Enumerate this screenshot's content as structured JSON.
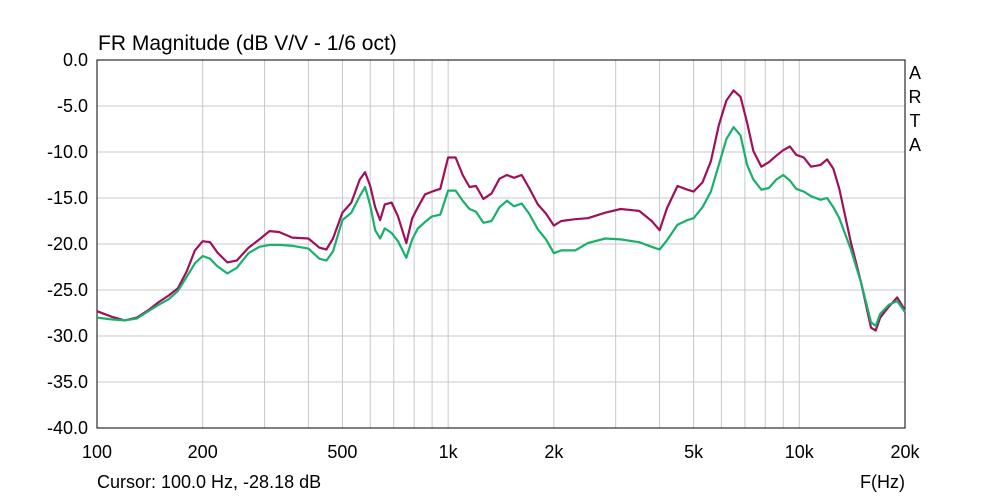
{
  "chart_data": {
    "type": "line",
    "title": "FR Magnitude (dB V/V - 1/6 oct)",
    "xlabel": "F(Hz)",
    "ylabel": "",
    "x_scale": "log",
    "xlim": [
      100,
      20000
    ],
    "ylim": [
      -40,
      0
    ],
    "grid": true,
    "x_ticks": [
      {
        "value": 100,
        "label": "100"
      },
      {
        "value": 200,
        "label": "200"
      },
      {
        "value": 500,
        "label": "500"
      },
      {
        "value": 1000,
        "label": "1k"
      },
      {
        "value": 2000,
        "label": "2k"
      },
      {
        "value": 5000,
        "label": "5k"
      },
      {
        "value": 10000,
        "label": "10k"
      },
      {
        "value": 20000,
        "label": "20k"
      }
    ],
    "y_ticks": [
      {
        "value": 0,
        "label": "0.0"
      },
      {
        "value": -5,
        "label": "-5.0"
      },
      {
        "value": -10,
        "label": "-10.0"
      },
      {
        "value": -15,
        "label": "-15.0"
      },
      {
        "value": -20,
        "label": "-20.0"
      },
      {
        "value": -25,
        "label": "-25.0"
      },
      {
        "value": -30,
        "label": "-30.0"
      },
      {
        "value": -35,
        "label": "-35.0"
      },
      {
        "value": -40,
        "label": "-40.0"
      }
    ],
    "series": [
      {
        "color": "#a0105a",
        "points": [
          [
            100,
            -27.3
          ],
          [
            110,
            -27.9
          ],
          [
            120,
            -28.3
          ],
          [
            130,
            -28.0
          ],
          [
            140,
            -27.2
          ],
          [
            150,
            -26.3
          ],
          [
            160,
            -25.6
          ],
          [
            170,
            -24.8
          ],
          [
            180,
            -23.0
          ],
          [
            190,
            -20.7
          ],
          [
            200,
            -19.7
          ],
          [
            210,
            -19.8
          ],
          [
            220,
            -20.9
          ],
          [
            235,
            -22.0
          ],
          [
            250,
            -21.8
          ],
          [
            270,
            -20.4
          ],
          [
            290,
            -19.5
          ],
          [
            310,
            -18.6
          ],
          [
            330,
            -18.7
          ],
          [
            360,
            -19.3
          ],
          [
            400,
            -19.4
          ],
          [
            430,
            -20.4
          ],
          [
            450,
            -20.6
          ],
          [
            470,
            -19.4
          ],
          [
            500,
            -16.6
          ],
          [
            530,
            -15.5
          ],
          [
            560,
            -13.0
          ],
          [
            580,
            -12.2
          ],
          [
            600,
            -13.7
          ],
          [
            620,
            -16.0
          ],
          [
            640,
            -17.4
          ],
          [
            660,
            -15.7
          ],
          [
            690,
            -15.5
          ],
          [
            720,
            -17.0
          ],
          [
            760,
            -19.9
          ],
          [
            790,
            -17.2
          ],
          [
            820,
            -16.0
          ],
          [
            860,
            -14.6
          ],
          [
            900,
            -14.3
          ],
          [
            950,
            -14.0
          ],
          [
            1000,
            -10.6
          ],
          [
            1050,
            -10.6
          ],
          [
            1100,
            -12.5
          ],
          [
            1150,
            -13.8
          ],
          [
            1200,
            -13.7
          ],
          [
            1260,
            -15.1
          ],
          [
            1330,
            -14.5
          ],
          [
            1400,
            -12.9
          ],
          [
            1470,
            -12.5
          ],
          [
            1540,
            -12.8
          ],
          [
            1620,
            -12.5
          ],
          [
            1700,
            -13.9
          ],
          [
            1800,
            -15.7
          ],
          [
            1900,
            -16.7
          ],
          [
            2000,
            -18.0
          ],
          [
            2100,
            -17.5
          ],
          [
            2300,
            -17.3
          ],
          [
            2500,
            -17.2
          ],
          [
            2800,
            -16.6
          ],
          [
            3100,
            -16.2
          ],
          [
            3500,
            -16.4
          ],
          [
            3800,
            -17.5
          ],
          [
            4000,
            -18.5
          ],
          [
            4200,
            -16.1
          ],
          [
            4500,
            -13.7
          ],
          [
            4800,
            -14.1
          ],
          [
            5000,
            -14.3
          ],
          [
            5300,
            -13.3
          ],
          [
            5600,
            -11.0
          ],
          [
            5900,
            -7.1
          ],
          [
            6200,
            -4.4
          ],
          [
            6500,
            -3.3
          ],
          [
            6800,
            -4.0
          ],
          [
            7100,
            -6.8
          ],
          [
            7400,
            -9.9
          ],
          [
            7800,
            -11.6
          ],
          [
            8200,
            -11.1
          ],
          [
            8600,
            -10.4
          ],
          [
            9000,
            -9.8
          ],
          [
            9400,
            -9.4
          ],
          [
            9800,
            -10.3
          ],
          [
            10300,
            -10.6
          ],
          [
            10800,
            -11.6
          ],
          [
            11500,
            -11.4
          ],
          [
            12000,
            -10.8
          ],
          [
            12500,
            -11.8
          ],
          [
            13000,
            -14.0
          ],
          [
            14000,
            -19.7
          ],
          [
            15000,
            -24.2
          ],
          [
            16000,
            -29.1
          ],
          [
            16500,
            -29.4
          ],
          [
            17000,
            -28.0
          ],
          [
            18000,
            -26.8
          ],
          [
            19000,
            -25.8
          ],
          [
            20000,
            -27.2
          ]
        ]
      },
      {
        "color": "#18b06a",
        "points": [
          [
            100,
            -28.0
          ],
          [
            110,
            -28.2
          ],
          [
            120,
            -28.3
          ],
          [
            130,
            -28.1
          ],
          [
            140,
            -27.3
          ],
          [
            150,
            -26.6
          ],
          [
            160,
            -26.0
          ],
          [
            170,
            -25.1
          ],
          [
            180,
            -23.6
          ],
          [
            190,
            -22.1
          ],
          [
            200,
            -21.3
          ],
          [
            210,
            -21.6
          ],
          [
            220,
            -22.4
          ],
          [
            235,
            -23.2
          ],
          [
            250,
            -22.6
          ],
          [
            270,
            -21.0
          ],
          [
            290,
            -20.3
          ],
          [
            310,
            -20.1
          ],
          [
            330,
            -20.1
          ],
          [
            360,
            -20.2
          ],
          [
            400,
            -20.5
          ],
          [
            430,
            -21.6
          ],
          [
            450,
            -21.8
          ],
          [
            470,
            -20.8
          ],
          [
            500,
            -17.4
          ],
          [
            530,
            -16.6
          ],
          [
            560,
            -14.8
          ],
          [
            580,
            -13.8
          ],
          [
            600,
            -15.8
          ],
          [
            620,
            -18.5
          ],
          [
            640,
            -19.4
          ],
          [
            660,
            -18.3
          ],
          [
            690,
            -18.8
          ],
          [
            720,
            -19.7
          ],
          [
            760,
            -21.5
          ],
          [
            790,
            -19.5
          ],
          [
            820,
            -18.3
          ],
          [
            860,
            -17.6
          ],
          [
            900,
            -17.0
          ],
          [
            950,
            -16.8
          ],
          [
            1000,
            -14.2
          ],
          [
            1050,
            -14.2
          ],
          [
            1100,
            -15.3
          ],
          [
            1150,
            -16.2
          ],
          [
            1200,
            -16.5
          ],
          [
            1260,
            -17.7
          ],
          [
            1330,
            -17.5
          ],
          [
            1400,
            -16.0
          ],
          [
            1470,
            -15.3
          ],
          [
            1540,
            -15.9
          ],
          [
            1620,
            -15.6
          ],
          [
            1700,
            -16.7
          ],
          [
            1800,
            -18.4
          ],
          [
            1900,
            -19.5
          ],
          [
            2000,
            -21.0
          ],
          [
            2100,
            -20.7
          ],
          [
            2300,
            -20.7
          ],
          [
            2500,
            -19.9
          ],
          [
            2800,
            -19.4
          ],
          [
            3100,
            -19.5
          ],
          [
            3500,
            -19.8
          ],
          [
            3800,
            -20.3
          ],
          [
            4000,
            -20.6
          ],
          [
            4200,
            -19.6
          ],
          [
            4500,
            -17.9
          ],
          [
            4800,
            -17.4
          ],
          [
            5000,
            -17.2
          ],
          [
            5300,
            -16.0
          ],
          [
            5600,
            -14.3
          ],
          [
            5900,
            -11.4
          ],
          [
            6200,
            -8.6
          ],
          [
            6500,
            -7.3
          ],
          [
            6800,
            -8.2
          ],
          [
            7100,
            -11.4
          ],
          [
            7400,
            -13.0
          ],
          [
            7800,
            -14.1
          ],
          [
            8200,
            -13.9
          ],
          [
            8600,
            -13.0
          ],
          [
            9000,
            -12.5
          ],
          [
            9400,
            -13.1
          ],
          [
            9800,
            -14.0
          ],
          [
            10300,
            -14.3
          ],
          [
            10800,
            -14.8
          ],
          [
            11500,
            -15.2
          ],
          [
            12000,
            -15.0
          ],
          [
            12500,
            -16.0
          ],
          [
            13000,
            -17.2
          ],
          [
            14000,
            -20.5
          ],
          [
            15000,
            -24.2
          ],
          [
            16000,
            -28.5
          ],
          [
            16500,
            -28.9
          ],
          [
            17000,
            -27.6
          ],
          [
            18000,
            -26.6
          ],
          [
            19000,
            -26.2
          ],
          [
            20000,
            -27.4
          ]
        ]
      }
    ]
  },
  "cursor_readout": "Cursor: 100.0 Hz, -28.18 dB",
  "brand_letters": [
    "A",
    "R",
    "T",
    "A"
  ]
}
